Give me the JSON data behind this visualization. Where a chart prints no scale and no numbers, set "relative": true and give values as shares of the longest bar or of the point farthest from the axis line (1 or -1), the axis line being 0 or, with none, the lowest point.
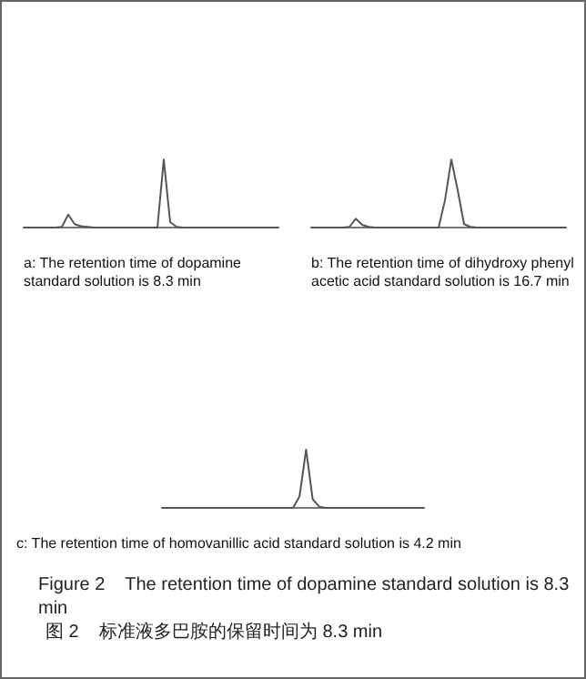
{
  "chart_data": [
    {
      "type": "line",
      "title": "a: The retention time of dopamine standard solution is 8.3 min",
      "relative": true,
      "tick_labels": false,
      "grid": false,
      "marker": "none",
      "categories": [
        null,
        null,
        null,
        null,
        null,
        null,
        null,
        null,
        null,
        null,
        null,
        null,
        null,
        null,
        null,
        null,
        null,
        null,
        null,
        null,
        null,
        null,
        null,
        null,
        null,
        null,
        null,
        null,
        null,
        null,
        null,
        null,
        null,
        null,
        null,
        null,
        null,
        null,
        null,
        null,
        null
      ],
      "series": [
        {
          "color": "#555555",
          "values": [
            0,
            0,
            0,
            0,
            0,
            0,
            0.01,
            0.19,
            0.05,
            0.02,
            0.01,
            0,
            0,
            0,
            0,
            0,
            0,
            0,
            0,
            0,
            0,
            0,
            1,
            0.08,
            0.01,
            0,
            0,
            0,
            0,
            0,
            0,
            0,
            0,
            0,
            0,
            0,
            0,
            0,
            0,
            0,
            0
          ]
        }
      ]
    },
    {
      "type": "line",
      "title": "b: The retention time of dihydroxy phenyl acetic acid standard solution is 16.7 min",
      "relative": true,
      "tick_labels": false,
      "grid": false,
      "marker": "none",
      "categories": [
        null,
        null,
        null,
        null,
        null,
        null,
        null,
        null,
        null,
        null,
        null,
        null,
        null,
        null,
        null,
        null,
        null,
        null,
        null,
        null,
        null,
        null,
        null,
        null,
        null,
        null,
        null,
        null,
        null,
        null,
        null,
        null,
        null,
        null,
        null,
        null,
        null,
        null,
        null,
        null,
        null
      ],
      "series": [
        {
          "color": "#555555",
          "values": [
            0,
            0,
            0,
            0,
            0,
            0,
            0.01,
            0.13,
            0.04,
            0.01,
            0,
            0,
            0,
            0,
            0,
            0,
            0,
            0,
            0,
            0,
            0,
            0.4,
            1,
            0.55,
            0.05,
            0.01,
            0,
            0,
            0,
            0,
            0,
            0,
            0,
            0,
            0,
            0,
            0,
            0,
            0,
            0,
            0
          ]
        }
      ]
    },
    {
      "type": "line",
      "title": "c: The retention time of homovanillic acid standard solution is 4.2 min",
      "relative": true,
      "tick_labels": false,
      "grid": false,
      "marker": "none",
      "categories": [
        null,
        null,
        null,
        null,
        null,
        null,
        null,
        null,
        null,
        null,
        null,
        null,
        null,
        null,
        null,
        null,
        null,
        null,
        null,
        null,
        null,
        null,
        null,
        null,
        null,
        null,
        null,
        null,
        null,
        null,
        null,
        null,
        null,
        null,
        null,
        null,
        null,
        null,
        null,
        null,
        null
      ],
      "series": [
        {
          "color": "#555555",
          "values": [
            0,
            0,
            0,
            0,
            0,
            0,
            0,
            0,
            0,
            0,
            0,
            0,
            0,
            0,
            0,
            0,
            0,
            0,
            0,
            0,
            0,
            0.2,
            1,
            0.15,
            0.02,
            0,
            0,
            0,
            0,
            0,
            0,
            0,
            0,
            0,
            0,
            0,
            0,
            0,
            0,
            0,
            0
          ]
        }
      ],
      "annotations": [
        "Figure 2    The retention time of dopamine standard solution is 8.3 min",
        "图 2    标准液多巴胺的保留时间为 8.3 min"
      ]
    }
  ]
}
